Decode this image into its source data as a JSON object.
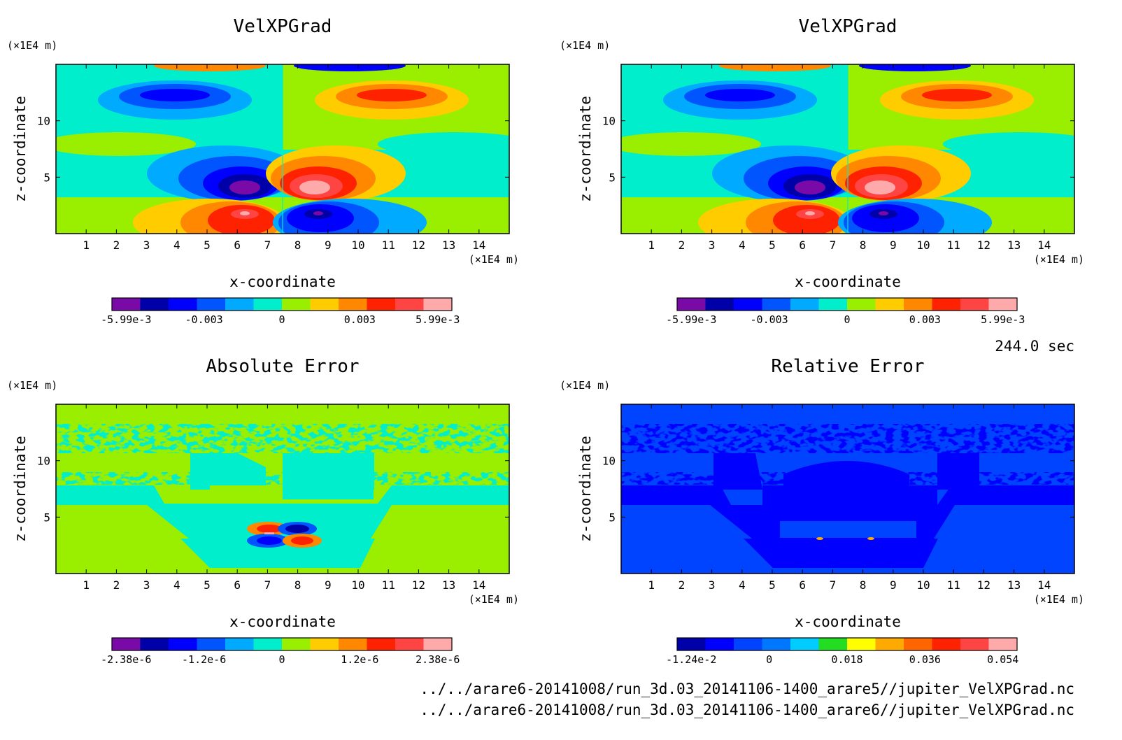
{
  "chart_data": [
    {
      "type": "heatmap",
      "title": "VelXPGrad",
      "xlabel": "x-coordinate",
      "ylabel": "z-coordinate",
      "x_unit": "(×1E4 m)",
      "y_unit": "(×1E4 m)",
      "xlim": [
        0,
        15
      ],
      "ylim": [
        0,
        15
      ],
      "x_ticks": [
        "1",
        "2",
        "3",
        "4",
        "5",
        "6",
        "7",
        "8",
        "9",
        "10",
        "11",
        "12",
        "13",
        "14"
      ],
      "y_ticks": [
        "5",
        "10"
      ],
      "colorbar": {
        "colors": [
          "#7a0aa8",
          "#0000a8",
          "#0000ff",
          "#0055ff",
          "#00aaff",
          "#00eecc",
          "#9aee00",
          "#ffcc00",
          "#ff8800",
          "#ff2200",
          "#ff4444",
          "#ffaaaa"
        ],
        "tick_labels": [
          "-5.99e-3",
          "-0.003",
          "0",
          "0.003",
          "5.99e-3"
        ]
      }
    },
    {
      "type": "heatmap",
      "title": "VelXPGrad",
      "xlabel": "x-coordinate",
      "ylabel": "z-coordinate",
      "x_unit": "(×1E4 m)",
      "y_unit": "(×1E4 m)",
      "xlim": [
        0,
        15
      ],
      "ylim": [
        0,
        15
      ],
      "x_ticks": [
        "1",
        "2",
        "3",
        "4",
        "5",
        "6",
        "7",
        "8",
        "9",
        "10",
        "11",
        "12",
        "13",
        "14"
      ],
      "y_ticks": [
        "5",
        "10"
      ],
      "colorbar": {
        "colors": [
          "#7a0aa8",
          "#0000a8",
          "#0000ff",
          "#0055ff",
          "#00aaff",
          "#00eecc",
          "#9aee00",
          "#ffcc00",
          "#ff8800",
          "#ff2200",
          "#ff4444",
          "#ffaaaa"
        ],
        "tick_labels": [
          "-5.99e-3",
          "-0.003",
          "0",
          "0.003",
          "5.99e-3"
        ]
      }
    },
    {
      "type": "heatmap",
      "title": "Absolute Error",
      "xlabel": "x-coordinate",
      "ylabel": "z-coordinate",
      "x_unit": "(×1E4 m)",
      "y_unit": "(×1E4 m)",
      "xlim": [
        0,
        15
      ],
      "ylim": [
        0,
        15
      ],
      "x_ticks": [
        "1",
        "2",
        "3",
        "4",
        "5",
        "6",
        "7",
        "8",
        "9",
        "10",
        "11",
        "12",
        "13",
        "14"
      ],
      "y_ticks": [
        "5",
        "10"
      ],
      "colorbar": {
        "colors": [
          "#7a0aa8",
          "#0000a8",
          "#0000ff",
          "#0055ff",
          "#00aaff",
          "#00eecc",
          "#9aee00",
          "#ffcc00",
          "#ff8800",
          "#ff2200",
          "#ff4444",
          "#ffaaaa"
        ],
        "tick_labels": [
          "-2.38e-6",
          "-1.2e-6",
          "0",
          "1.2e-6",
          "2.38e-6"
        ]
      }
    },
    {
      "type": "heatmap",
      "title": "Relative Error",
      "xlabel": "x-coordinate",
      "ylabel": "z-coordinate",
      "x_unit": "(×1E4 m)",
      "y_unit": "(×1E4 m)",
      "xlim": [
        0,
        15
      ],
      "ylim": [
        0,
        15
      ],
      "x_ticks": [
        "1",
        "2",
        "3",
        "4",
        "5",
        "6",
        "7",
        "8",
        "9",
        "10",
        "11",
        "12",
        "13",
        "14"
      ],
      "y_ticks": [
        "5",
        "10"
      ],
      "colorbar": {
        "colors": [
          "#0000a8",
          "#0000ff",
          "#0044ff",
          "#0077ff",
          "#00ccff",
          "#22dd22",
          "#ffff00",
          "#ffaa00",
          "#ff6600",
          "#ff2200",
          "#ff4444",
          "#ffaaaa"
        ],
        "tick_labels": [
          "-1.24e-2",
          "0",
          "0.018",
          "0.036",
          "0.054"
        ]
      }
    }
  ],
  "time_label": "244.0 sec",
  "file_paths": [
    "../../arare6-20141008/run_3d.03_20141106-1400_arare5//jupiter_VelXPGrad.nc",
    "../../arare6-20141008/run_3d.03_20141106-1400_arare6//jupiter_VelXPGrad.nc"
  ]
}
